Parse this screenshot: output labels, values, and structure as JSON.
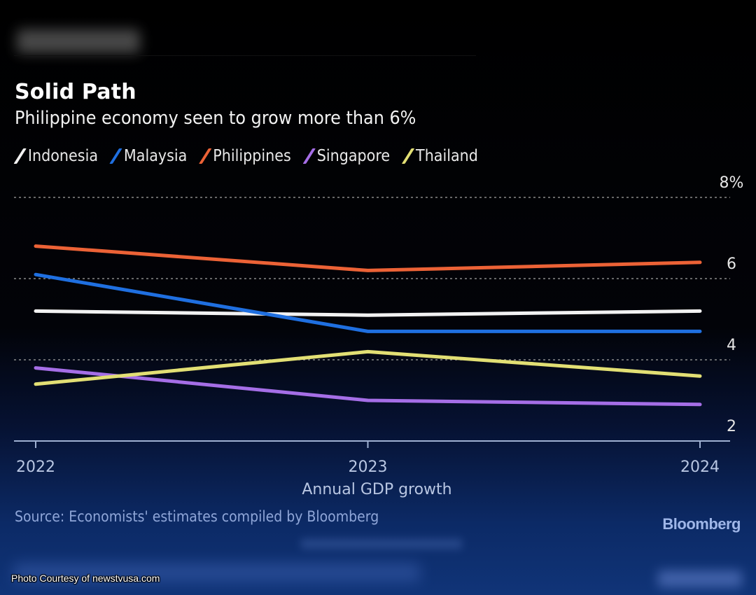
{
  "header": {
    "blurred_kicker": "Solid Path"
  },
  "chart_data": {
    "type": "line",
    "title": "Solid Path",
    "subtitle": "Philippine economy seen to grow more than 6%",
    "xlabel": "Annual GDP growth",
    "ylabel": "",
    "x": [
      "2022",
      "2023",
      "2024"
    ],
    "ylim": [
      2,
      8
    ],
    "yticks": [
      {
        "value": 8,
        "label": "8%"
      },
      {
        "value": 6,
        "label": "6"
      },
      {
        "value": 4,
        "label": "4"
      },
      {
        "value": 2,
        "label": "2"
      }
    ],
    "y_axis_side": "right",
    "grid": true,
    "legend_position": "top-left",
    "series": [
      {
        "name": "Indonesia",
        "color": "#f2f2f2",
        "values": [
          5.2,
          5.1,
          5.2
        ]
      },
      {
        "name": "Malaysia",
        "color": "#1f6fe0",
        "values": [
          6.1,
          4.7,
          4.7
        ]
      },
      {
        "name": "Philippines",
        "color": "#ec6236",
        "values": [
          6.8,
          6.2,
          6.4
        ]
      },
      {
        "name": "Singapore",
        "color": "#a56ee6",
        "values": [
          3.8,
          3.0,
          2.9
        ]
      },
      {
        "name": "Thailand",
        "color": "#e2df74",
        "values": [
          3.4,
          4.2,
          3.6
        ]
      }
    ],
    "source": "Source: Economists' estimates compiled by Bloomberg"
  },
  "footer": {
    "brand": "Bloomberg",
    "photo_credit": "Photo Courtesy of newstvusa.com"
  }
}
